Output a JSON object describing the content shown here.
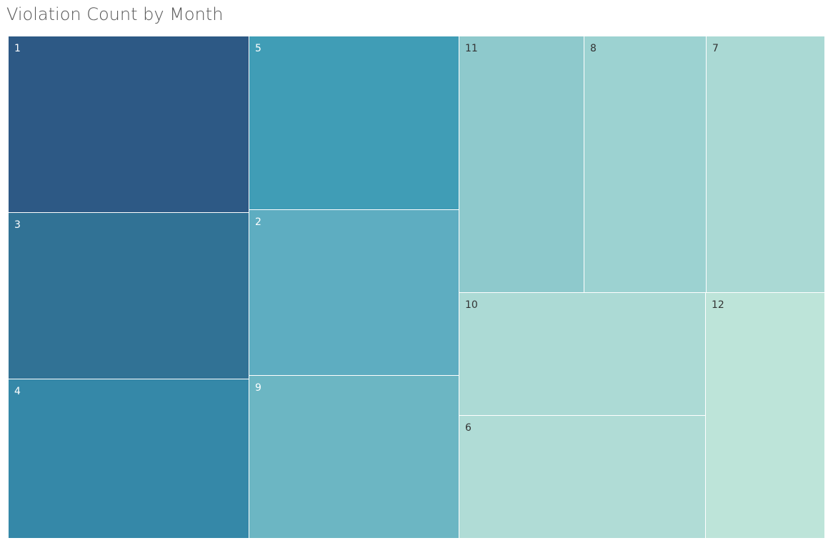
{
  "chart_data": {
    "type": "treemap",
    "title": "Violation Count by Month",
    "measure": "Violation Count",
    "color_scale": "sequential blue-teal, darker = higher count",
    "items": [
      {
        "label": "1",
        "value": 1000,
        "color": "#2d5985",
        "label_color": "#ffffff"
      },
      {
        "label": "3",
        "value": 934,
        "color": "#317295",
        "label_color": "#ffffff"
      },
      {
        "label": "4",
        "value": 894,
        "color": "#3588a8",
        "label_color": "#ffffff"
      },
      {
        "label": "5",
        "value": 856,
        "color": "#409db6",
        "label_color": "#ffffff"
      },
      {
        "label": "2",
        "value": 814,
        "color": "#5eadc1",
        "label_color": "#ffffff"
      },
      {
        "label": "9",
        "value": 804,
        "color": "#6cb6c3",
        "label_color": "#ffffff"
      },
      {
        "label": "11",
        "value": 760,
        "color": "#8ec9cc",
        "label_color": "#333333"
      },
      {
        "label": "8",
        "value": 737,
        "color": "#9cd2d1",
        "label_color": "#333333"
      },
      {
        "label": "7",
        "value": 716,
        "color": "#aad9d4",
        "label_color": "#333333"
      },
      {
        "label": "10",
        "value": 717,
        "color": "#acdad5",
        "label_color": "#333333"
      },
      {
        "label": "6",
        "value": 713,
        "color": "#b0dcd6",
        "label_color": "#333333"
      },
      {
        "label": "12",
        "value": 697,
        "color": "#bde4d9",
        "label_color": "#333333"
      }
    ]
  }
}
